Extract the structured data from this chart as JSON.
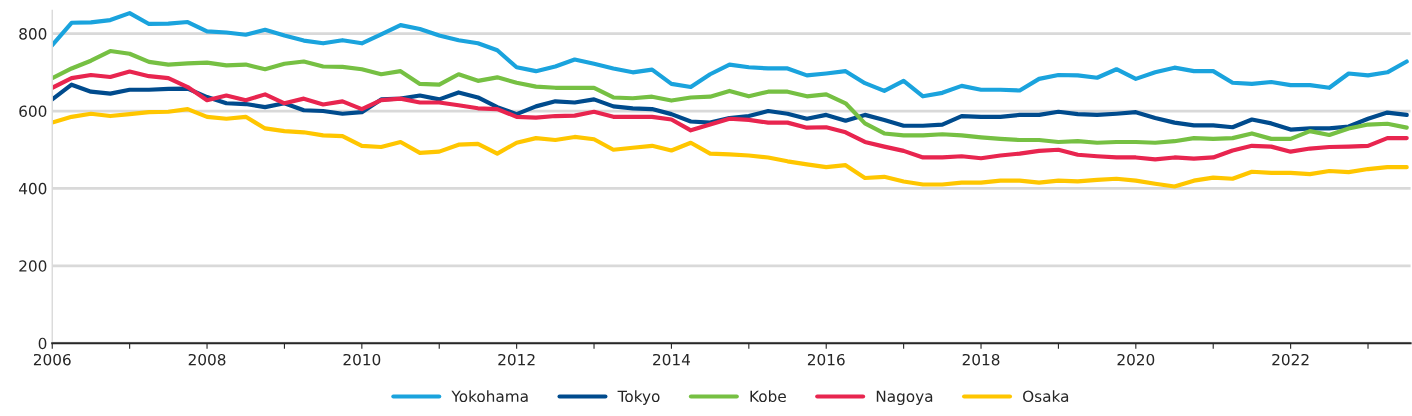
{
  "chart_data": {
    "type": "line",
    "x": [
      2006,
      2006.25,
      2006.5,
      2006.75,
      2007,
      2007.25,
      2007.5,
      2007.75,
      2008,
      2008.25,
      2008.5,
      2008.75,
      2009,
      2009.25,
      2009.5,
      2009.75,
      2010,
      2010.25,
      2010.5,
      2010.75,
      2011,
      2011.25,
      2011.5,
      2011.75,
      2012,
      2012.25,
      2012.5,
      2012.75,
      2013,
      2013.25,
      2013.5,
      2013.75,
      2014,
      2014.25,
      2014.5,
      2014.75,
      2015,
      2015.25,
      2015.5,
      2015.75,
      2016,
      2016.25,
      2016.5,
      2016.75,
      2017,
      2017.25,
      2017.5,
      2017.75,
      2018,
      2018.25,
      2018.5,
      2018.75,
      2019,
      2019.25,
      2019.5,
      2019.75,
      2020,
      2020.25,
      2020.5,
      2020.75,
      2021,
      2021.25,
      2021.5,
      2021.75,
      2022,
      2022.25,
      2022.5,
      2022.75,
      2023,
      2023.25,
      2023.5
    ],
    "series": [
      {
        "name": "Yokohama",
        "color": "#1aa3dd",
        "values": [
          770,
          828,
          829,
          835,
          853,
          825,
          826,
          830,
          806,
          803,
          797,
          810,
          795,
          782,
          775,
          783,
          775,
          798,
          822,
          812,
          795,
          783,
          775,
          757,
          713,
          703,
          715,
          733,
          722,
          710,
          700,
          707,
          670,
          662,
          695,
          720,
          713,
          710,
          710,
          692,
          697,
          703,
          672,
          652,
          678,
          638,
          647,
          665,
          655,
          655,
          653,
          683,
          693,
          692,
          686,
          708,
          683,
          700,
          712,
          703,
          703,
          673,
          670,
          675,
          667,
          667,
          660,
          697,
          692,
          700,
          728
        ]
      },
      {
        "name": "Tokyo",
        "color": "#004b8d",
        "values": [
          630,
          668,
          650,
          645,
          655,
          655,
          657,
          658,
          636,
          620,
          618,
          610,
          620,
          602,
          600,
          593,
          597,
          630,
          632,
          640,
          630,
          648,
          635,
          610,
          592,
          612,
          625,
          622,
          630,
          612,
          607,
          605,
          592,
          573,
          570,
          582,
          587,
          600,
          593,
          580,
          590,
          575,
          590,
          577,
          562,
          562,
          565,
          587,
          585,
          585,
          590,
          590,
          598,
          592,
          590,
          593,
          597,
          582,
          570,
          563,
          563,
          558,
          578,
          568,
          552,
          555,
          555,
          560,
          580,
          596,
          590
        ]
      },
      {
        "name": "Kobe",
        "color": "#76c043",
        "values": [
          685,
          710,
          730,
          755,
          748,
          727,
          720,
          723,
          725,
          718,
          720,
          708,
          722,
          728,
          715,
          714,
          708,
          695,
          703,
          670,
          668,
          695,
          678,
          687,
          673,
          663,
          660,
          660,
          660,
          635,
          633,
          637,
          627,
          635,
          637,
          652,
          638,
          650,
          650,
          638,
          643,
          620,
          568,
          542,
          537,
          537,
          540,
          537,
          532,
          528,
          525,
          525,
          520,
          522,
          518,
          520,
          520,
          518,
          522,
          530,
          528,
          530,
          542,
          528,
          528,
          548,
          538,
          555,
          565,
          567,
          557
        ]
      },
      {
        "name": "Nagoya",
        "color": "#e8254f",
        "values": [
          660,
          685,
          693,
          688,
          702,
          690,
          685,
          662,
          628,
          640,
          628,
          643,
          620,
          632,
          617,
          625,
          605,
          628,
          632,
          622,
          622,
          615,
          607,
          605,
          585,
          583,
          587,
          588,
          598,
          585,
          585,
          585,
          578,
          550,
          565,
          580,
          577,
          570,
          570,
          557,
          558,
          545,
          520,
          508,
          497,
          480,
          480,
          483,
          478,
          485,
          490,
          497,
          500,
          487,
          483,
          480,
          480,
          475,
          480,
          477,
          480,
          498,
          510,
          508,
          495,
          503,
          507,
          508,
          510,
          530,
          530
        ]
      },
      {
        "name": "Osaka",
        "color": "#ffc600",
        "values": [
          570,
          585,
          593,
          587,
          592,
          597,
          598,
          605,
          585,
          580,
          585,
          555,
          548,
          545,
          537,
          535,
          510,
          507,
          520,
          492,
          495,
          513,
          515,
          490,
          518,
          530,
          525,
          533,
          527,
          500,
          505,
          510,
          498,
          518,
          490,
          488,
          485,
          480,
          470,
          462,
          455,
          460,
          427,
          430,
          418,
          410,
          410,
          415,
          415,
          420,
          420,
          415,
          420,
          418,
          422,
          425,
          420,
          412,
          405,
          420,
          428,
          425,
          443,
          440,
          440,
          437,
          445,
          442,
          450,
          455,
          455
        ]
      }
    ],
    "xlim": [
      2006,
      2023.55
    ],
    "xticks": [
      2006,
      {
        "value": 2007,
        "label": null
      },
      2008,
      {
        "value": 2009,
        "label": null
      },
      2010,
      {
        "value": 2011,
        "label": null
      },
      2012,
      {
        "value": 2013,
        "label": null
      },
      2014,
      {
        "value": 2015,
        "label": null
      },
      2016,
      {
        "value": 2017,
        "label": null
      },
      2018,
      {
        "value": 2019,
        "label": null
      },
      2020,
      {
        "value": 2021,
        "label": null
      },
      2022,
      {
        "value": 2023,
        "label": null
      }
    ],
    "ylim": [
      0,
      860
    ],
    "yticks": [
      0,
      200,
      400,
      600,
      800
    ],
    "grid": "y",
    "legend": "bottom",
    "line_style": "solid",
    "marker": "none"
  }
}
